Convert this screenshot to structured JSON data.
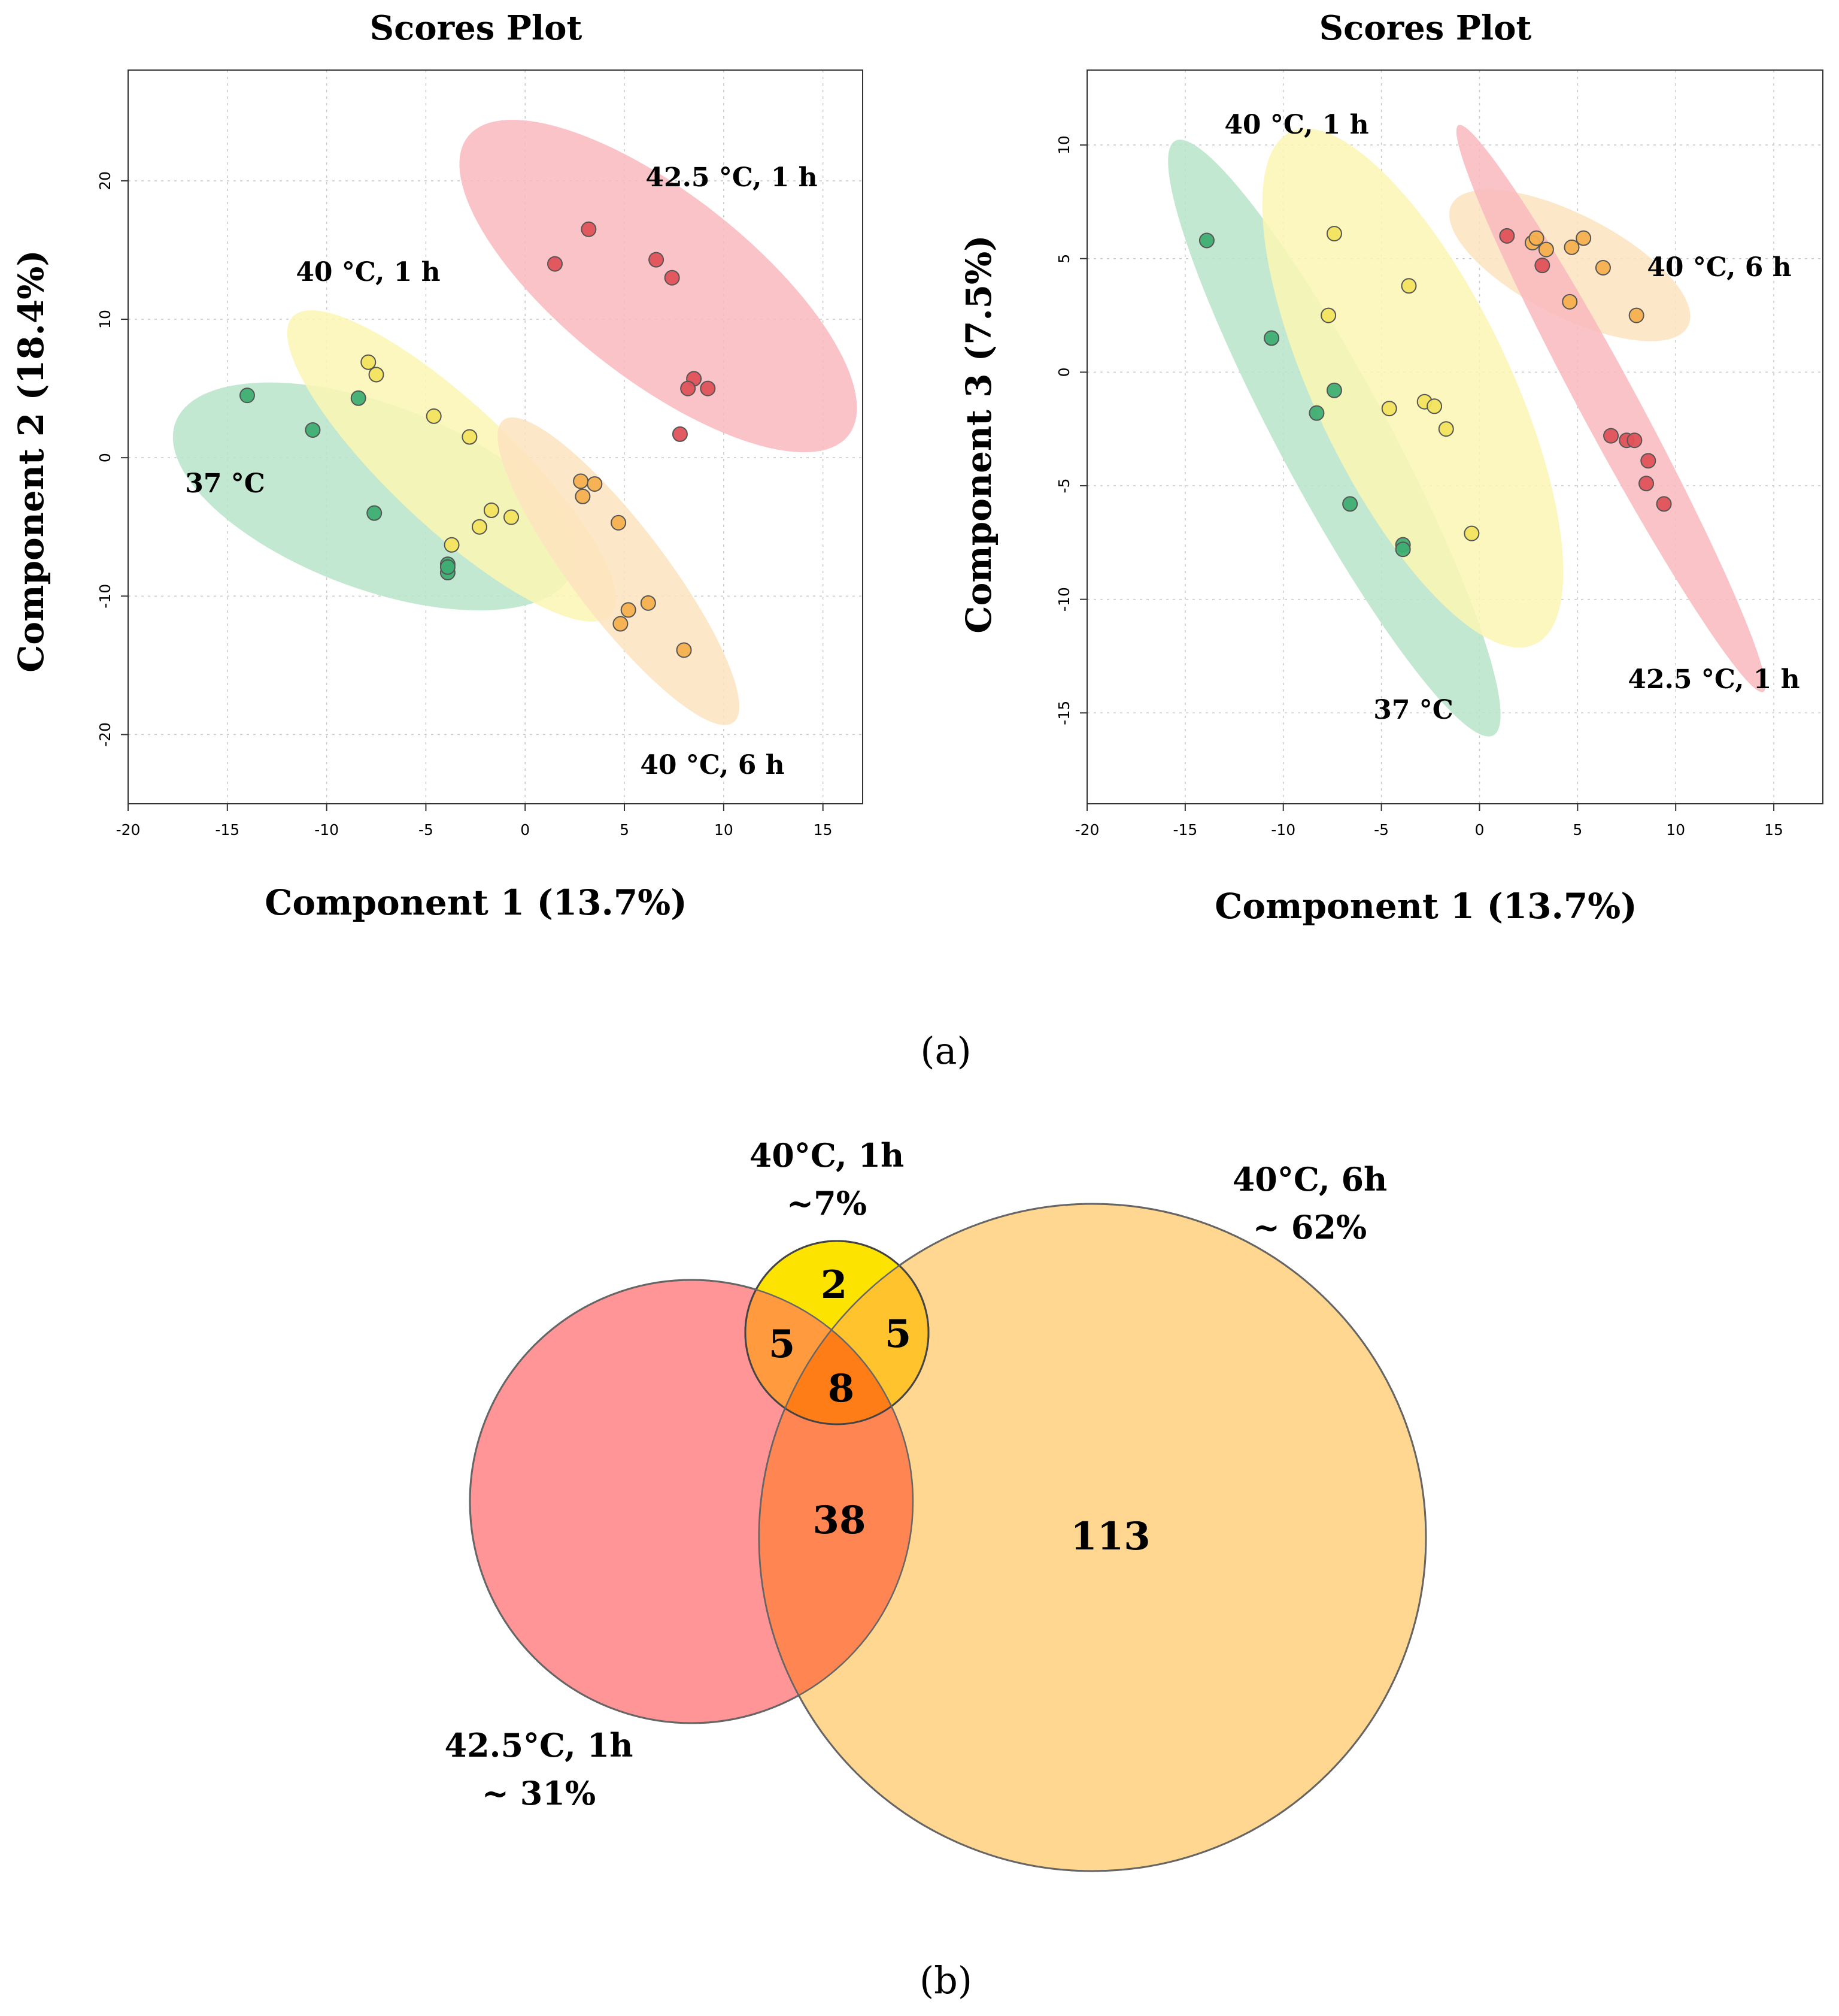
{
  "figure": {
    "panel_a_label": "(a)",
    "panel_b_label": "(b)"
  },
  "colors": {
    "g37": "#3fae72",
    "g40_1h": "#f2e35f",
    "g40_6h": "#f5b04f",
    "g42_1h": "#e0525a",
    "ellipse_37": "#b9e4c9",
    "ellipse_40_1h": "#fbf6b3",
    "ellipse_40_6h": "#fde3bf",
    "ellipse_42_1h": "#f9b9bd",
    "venn_red": "#ff8e8f",
    "venn_orange": "#ffd385",
    "venn_yellow": "#fce300"
  },
  "chart_data": [
    {
      "type": "scatter",
      "title": "Scores Plot",
      "xlabel": "Component 1 (13.7%)",
      "ylabel": "Component 2 (18.4%)",
      "xlim": [
        -20,
        17
      ],
      "ylim": [
        -25,
        28
      ],
      "xticks": [
        -20,
        -15,
        -10,
        -5,
        0,
        5,
        10,
        15
      ],
      "yticks": [
        -20,
        -10,
        0,
        10,
        20
      ],
      "grid": true,
      "series": [
        {
          "name": "37 °C",
          "label": "37 °C",
          "color_key": "g37",
          "x": [
            -14,
            -10.7,
            -8.4,
            -7.6,
            -3.9,
            -3.9,
            -3.9
          ],
          "y": [
            4.5,
            2,
            4.3,
            -4,
            -7.7,
            -8.3,
            -7.9
          ],
          "ellipse": {
            "cx": -7.6,
            "cy": -2.8,
            "rx": 11.5,
            "ry": 6.2,
            "angle_deg": -34
          }
        },
        {
          "name": "40 °C, 1 h",
          "label": "40 °C, 1 h",
          "color_key": "g40_1h",
          "x": [
            -7.9,
            -7.5,
            -4.6,
            -2.8,
            -3.7,
            -1.7,
            -2.3,
            -0.7
          ],
          "y": [
            6.9,
            6,
            3,
            1.5,
            -6.3,
            -3.8,
            -5,
            -4.3
          ],
          "ellipse": {
            "cx": -3.7,
            "cy": -0.6,
            "rx": 13.5,
            "ry": 3.6,
            "angle_deg": -55
          }
        },
        {
          "name": "40 °C, 6 h",
          "label": "40 °C, 6 h",
          "color_key": "g40_6h",
          "x": [
            2.8,
            3.5,
            2.9,
            4.7,
            6.2,
            5.2,
            4.8,
            8
          ],
          "y": [
            -1.7,
            -1.9,
            -2.8,
            -4.7,
            -10.5,
            -11,
            -12,
            -13.9
          ],
          "ellipse": {
            "cx": 4.7,
            "cy": -8.2,
            "rx": 12.4,
            "ry": 2.6,
            "angle_deg": -63
          }
        },
        {
          "name": "42.5 °C, 1 h",
          "label": "42.5 °C, 1 h",
          "color_key": "g42_1h",
          "x": [
            1.5,
            3.2,
            6.6,
            7.4,
            8.5,
            8.2,
            9.2,
            7.8
          ],
          "y": [
            14,
            16.5,
            14.3,
            13,
            5.7,
            5,
            5,
            1.7
          ],
          "ellipse": {
            "cx": 6.7,
            "cy": 12.4,
            "rx": 14.6,
            "ry": 5.6,
            "angle_deg": -52
          }
        }
      ]
    },
    {
      "type": "scatter",
      "title": "Scores Plot",
      "xlabel": "Component 1 (13.7%)",
      "ylabel": "Component 3 (7.5%)",
      "xlim": [
        -20,
        17.5
      ],
      "ylim": [
        -19,
        13.3
      ],
      "xticks": [
        -20,
        -15,
        -10,
        -5,
        0,
        5,
        10,
        15
      ],
      "yticks": [
        -15,
        -10,
        -5,
        0,
        5,
        10
      ],
      "grid": true,
      "series": [
        {
          "name": "37 °C",
          "label": "37 °C",
          "color_key": "g37",
          "x": [
            -13.9,
            -10.6,
            -7.4,
            -8.3,
            -6.6,
            -3.9,
            -3.9
          ],
          "y": [
            5.8,
            1.5,
            -0.8,
            -1.8,
            -5.8,
            -7.6,
            -7.8
          ],
          "ellipse": {
            "cx": -7.4,
            "cy": -2.9,
            "rx": 15.4,
            "ry": 2.7,
            "angle_deg": -58
          }
        },
        {
          "name": "40 °C, 1 h",
          "label": "40 °C, 1 h",
          "color_key": "g40_1h",
          "x": [
            -7.4,
            -7.7,
            -3.6,
            -4.6,
            -2.8,
            -2.3,
            -1.7,
            -0.4
          ],
          "y": [
            6.1,
            2.5,
            3.8,
            -1.6,
            -1.3,
            -1.5,
            -2.5,
            -7.1
          ],
          "ellipse": {
            "cx": -3.4,
            "cy": -0.7,
            "rx": 12.9,
            "ry": 4.8,
            "angle_deg": -60
          }
        },
        {
          "name": "40 °C, 6 h",
          "label": "40 °C, 6 h",
          "color_key": "g40_6h",
          "x": [
            2.7,
            2.9,
            3.4,
            4.7,
            5.3,
            6.3,
            4.6,
            8
          ],
          "y": [
            5.7,
            5.9,
            5.4,
            5.5,
            5.9,
            4.6,
            3.1,
            2.5
          ],
          "ellipse": {
            "cx": 4.6,
            "cy": 4.7,
            "rx": 6.6,
            "ry": 2.3,
            "angle_deg": -23
          }
        },
        {
          "name": "42.5 °C, 1 h",
          "label": "42.5 °C, 1 h",
          "color_key": "g42_1h",
          "x": [
            1.4,
            3.2,
            6.7,
            7.5,
            7.9,
            8.6,
            8.5,
            9.4
          ],
          "y": [
            6,
            4.7,
            -2.8,
            -3,
            -3,
            -3.9,
            -4.9,
            -5.8
          ],
          "ellipse": {
            "cx": 6.7,
            "cy": -1.6,
            "rx": 14.7,
            "ry": 1.4,
            "angle_deg": -58
          }
        }
      ]
    },
    {
      "type": "venn",
      "sets": [
        {
          "name": "40°C, 1h",
          "share": "~7%",
          "color_key": "venn_yellow"
        },
        {
          "name": "40°C, 6h",
          "share": "~ 62%",
          "color_key": "venn_orange"
        },
        {
          "name": "42.5°C, 1h",
          "share": "~ 31%",
          "color_key": "venn_red"
        }
      ],
      "regions": {
        "only_40_1h": 2,
        "40_1h_and_42_5_1h": 5,
        "40_1h_and_40_6h": 5,
        "all_three": 8,
        "40_6h_and_42_5_1h": 38,
        "only_40_6h": 113
      }
    }
  ]
}
